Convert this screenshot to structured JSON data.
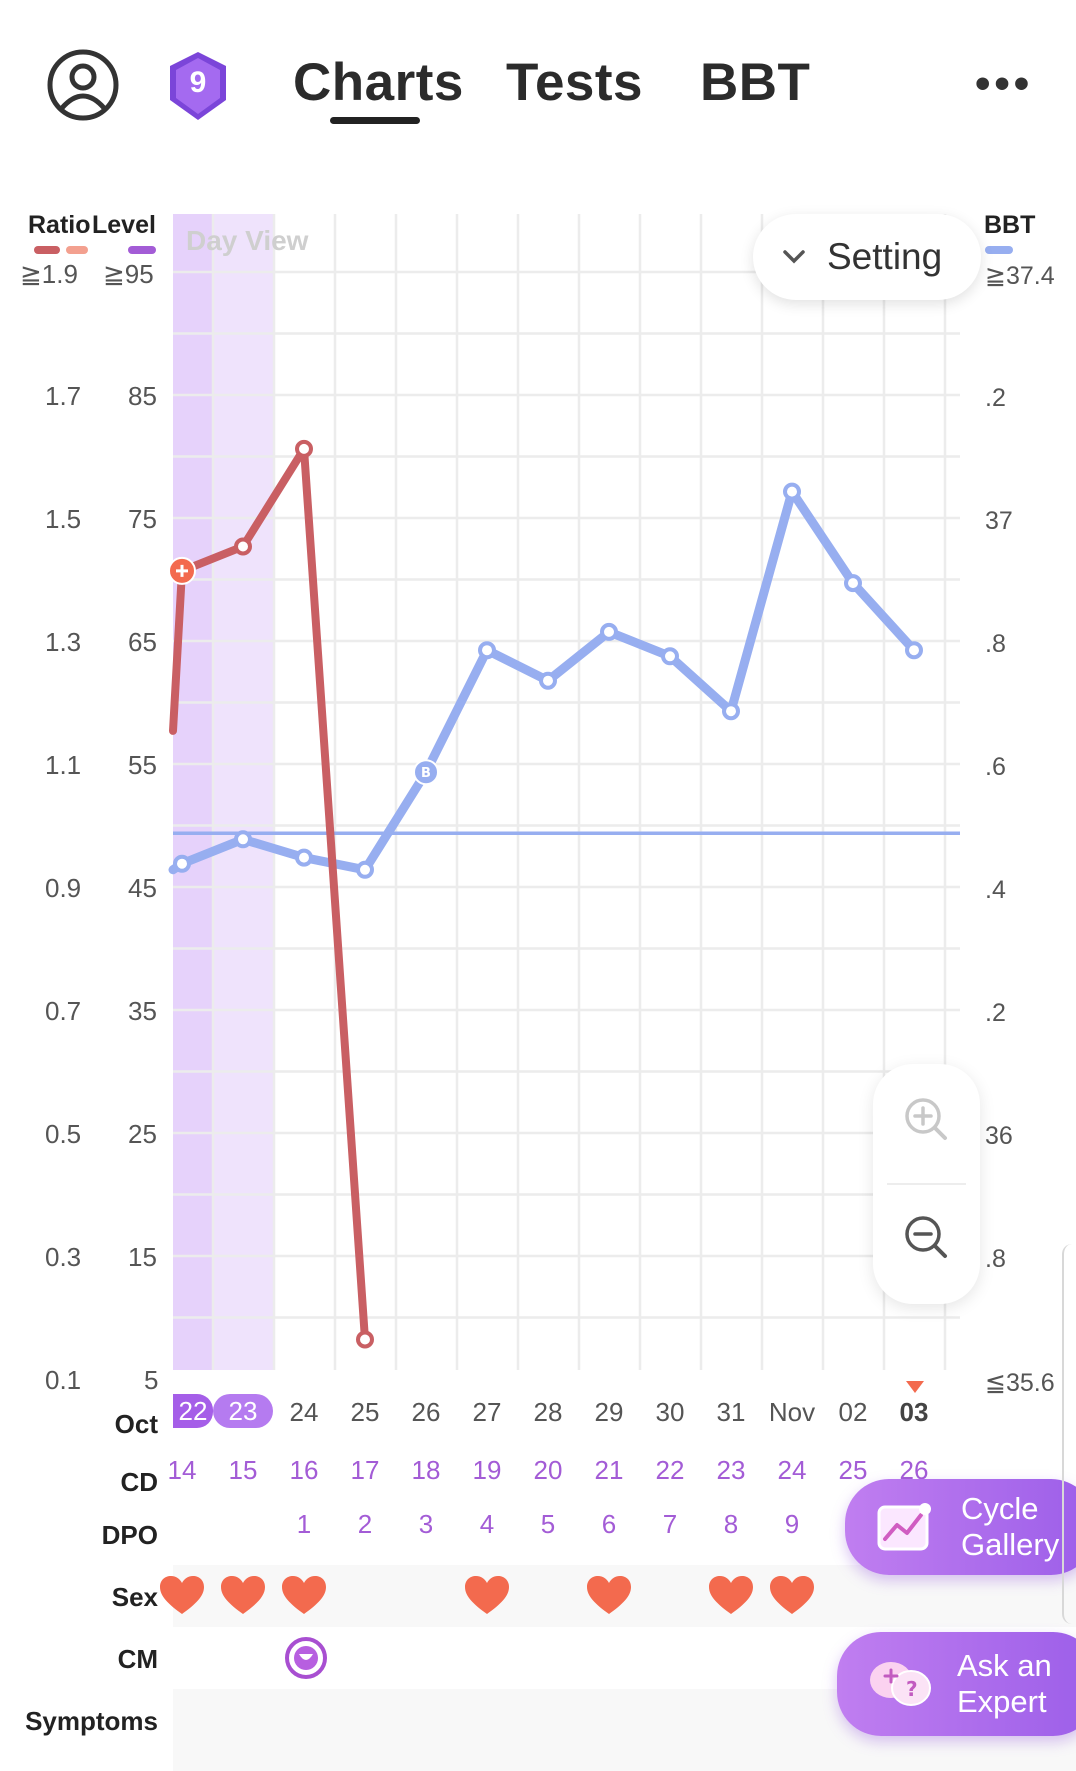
{
  "header": {
    "tabs": [
      "Charts",
      "Tests",
      "BBT"
    ],
    "active_tab": "Charts",
    "badge_number": "9",
    "more_label": "•••"
  },
  "chart": {
    "watermark": "Day View",
    "setting_label": "Setting",
    "left_headers": {
      "ratio": "Ratio",
      "level": "Level"
    },
    "ratio_ticks": [
      "≧1.9",
      "1.7",
      "1.5",
      "1.3",
      "1.1",
      "0.9",
      "0.7",
      "0.5",
      "0.3",
      "0.1"
    ],
    "level_ticks": [
      "≧95",
      "85",
      "75",
      "65",
      "55",
      "45",
      "35",
      "25",
      "15",
      "5"
    ],
    "right_header": "BBT",
    "bbt_ticks": [
      "≧37.4",
      ".2",
      "37",
      ".8",
      ".6",
      ".4",
      ".2",
      "36",
      ".8",
      "≦35.6"
    ],
    "colors": {
      "ratio": "#c95f63",
      "bbt": "#97aef0",
      "period": "#e2cdfa",
      "accent": "#a35cd6",
      "heart": "#f36a4e"
    }
  },
  "chart_data": {
    "type": "line",
    "x": [
      "Oct 22",
      "Oct 23",
      "Oct 24",
      "Oct 25",
      "Oct 26",
      "Oct 27",
      "Oct 28",
      "Oct 29",
      "Oct 30",
      "Oct 31",
      "Nov 01",
      "Nov 02",
      "Nov 03"
    ],
    "series": [
      {
        "axis": "ratio",
        "values": [
          1.41,
          1.45,
          1.61,
          0.15,
          null,
          null,
          null,
          null,
          null,
          null,
          null,
          null,
          null
        ]
      },
      {
        "axis": "bbt",
        "values": [
          36.43,
          36.47,
          36.44,
          36.42,
          36.58,
          36.78,
          36.73,
          36.81,
          36.77,
          36.68,
          37.04,
          36.89,
          36.78
        ]
      }
    ],
    "coverline_bbt": 36.48,
    "ratio_range": [
      0.1,
      1.9
    ],
    "level_range": [
      5,
      95
    ],
    "bbt_range": [
      35.6,
      37.4
    ],
    "markers": {
      "ratio_plus_day": "Oct 22",
      "bbt_b_day": "Oct 26"
    },
    "today": "Nov 03",
    "grid": true
  },
  "timeline": {
    "labels": {
      "date": "Oct",
      "cd": "CD",
      "dpo": "DPO",
      "sex": "Sex",
      "cm": "CM",
      "symptoms": "Symptoms"
    },
    "dates": [
      "22",
      "23",
      "24",
      "25",
      "26",
      "27",
      "28",
      "29",
      "30",
      "31",
      "Nov",
      "02",
      "03"
    ],
    "cd": [
      "14",
      "15",
      "16",
      "17",
      "18",
      "19",
      "20",
      "21",
      "22",
      "23",
      "24",
      "25",
      "26"
    ],
    "dpo": [
      "",
      "",
      "1",
      "2",
      "3",
      "4",
      "5",
      "6",
      "7",
      "8",
      "9",
      "",
      ""
    ],
    "sex_days": [
      0,
      1,
      2,
      5,
      7,
      9,
      10
    ],
    "cm_day": 2
  },
  "fabs": {
    "gallery_line1": "Cycle",
    "gallery_line2": "Gallery",
    "expert_line1": "Ask an",
    "expert_line2": "Expert"
  }
}
